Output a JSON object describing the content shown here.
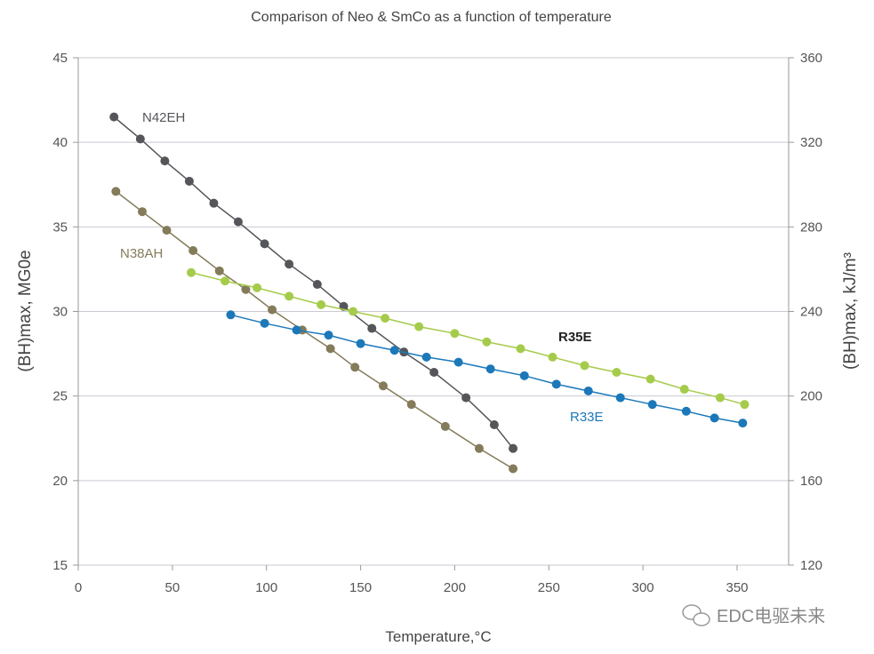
{
  "chart_data": {
    "type": "line",
    "title": "Comparison of Neo & SmCo as a function of temperature",
    "xlabel": "Temperature,°C",
    "ylabel": "(BH)max, MG0e",
    "y2label": "(BH)max, kJ/m³",
    "xlim": [
      0,
      375
    ],
    "ylim": [
      15,
      45
    ],
    "y2lim": [
      120,
      360
    ],
    "xticks": [
      0,
      50,
      100,
      150,
      200,
      250,
      300,
      350
    ],
    "yticks": [
      15,
      20,
      25,
      30,
      35,
      40,
      45
    ],
    "y2ticks": [
      120,
      160,
      200,
      240,
      280,
      320,
      360
    ],
    "grid": "horizontal",
    "series": [
      {
        "name": "N42EH",
        "color": "#55565a",
        "x": [
          19,
          33,
          46,
          59,
          72,
          85,
          99,
          112,
          127,
          141,
          156,
          173,
          189,
          206,
          221,
          231
        ],
        "y": [
          41.5,
          40.2,
          38.9,
          37.7,
          36.4,
          35.3,
          34.0,
          32.8,
          31.6,
          30.3,
          29.0,
          27.6,
          26.4,
          24.9,
          23.3,
          21.9
        ]
      },
      {
        "name": "N38AH",
        "color": "#847b5a",
        "x": [
          20,
          34,
          47,
          61,
          75,
          89,
          103,
          119,
          134,
          147,
          162,
          177,
          195,
          213,
          231
        ],
        "y": [
          37.1,
          35.9,
          34.8,
          33.6,
          32.4,
          31.3,
          30.1,
          28.9,
          27.8,
          26.7,
          25.6,
          24.5,
          23.2,
          21.9,
          20.7
        ]
      },
      {
        "name": "R35E",
        "color": "#a5cb4b",
        "x": [
          60,
          78,
          95,
          112,
          129,
          146,
          163,
          181,
          200,
          217,
          235,
          252,
          269,
          286,
          304,
          322,
          341,
          354
        ],
        "y": [
          32.3,
          31.8,
          31.4,
          30.9,
          30.4,
          30.0,
          29.6,
          29.1,
          28.7,
          28.2,
          27.8,
          27.3,
          26.8,
          26.4,
          26.0,
          25.4,
          24.9,
          24.5
        ]
      },
      {
        "name": "R33E",
        "color": "#1b78b9",
        "x": [
          81,
          99,
          116,
          133,
          150,
          168,
          185,
          202,
          219,
          237,
          254,
          271,
          288,
          305,
          323,
          338,
          353
        ],
        "y": [
          29.8,
          29.3,
          28.9,
          28.6,
          28.1,
          27.7,
          27.3,
          27.0,
          26.6,
          26.2,
          25.7,
          25.3,
          24.9,
          24.5,
          24.1,
          23.7,
          23.4
        ]
      }
    ]
  },
  "watermark": "EDC电驱未来"
}
